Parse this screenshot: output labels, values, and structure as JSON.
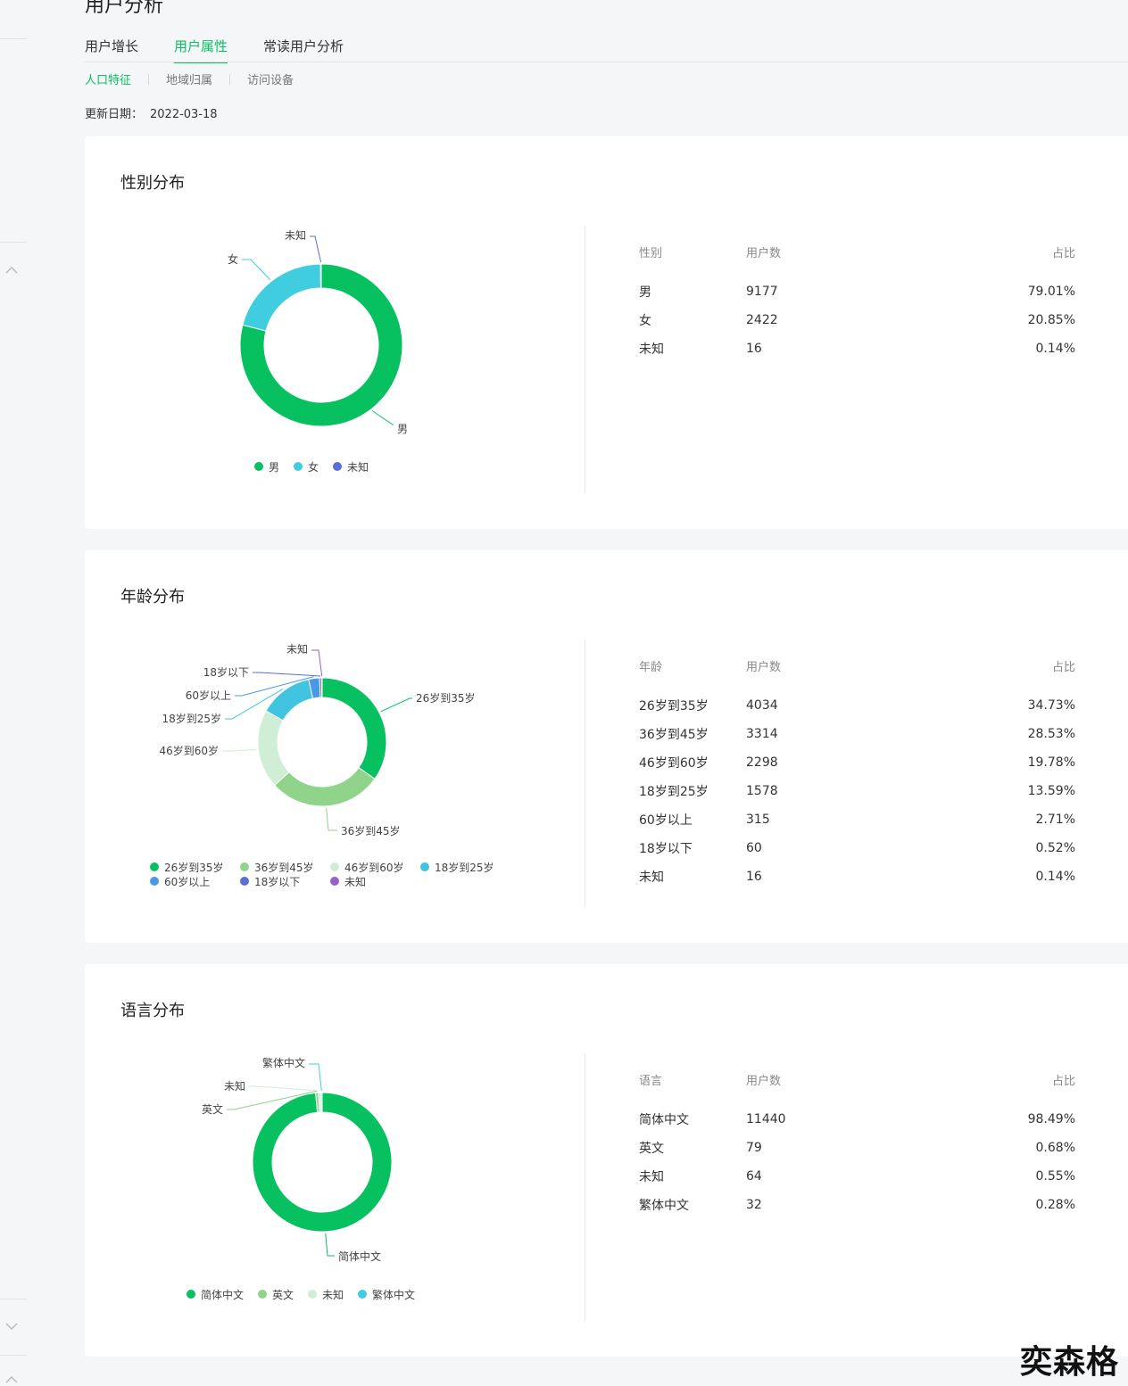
{
  "page_title": "用户分析",
  "tabs": [
    {
      "label": "用户增长",
      "active": false
    },
    {
      "label": "用户属性",
      "active": true
    },
    {
      "label": "常读用户分析",
      "active": false
    }
  ],
  "subtabs": [
    {
      "label": "人口特征",
      "active": true
    },
    {
      "label": "地域归属",
      "active": false
    },
    {
      "label": "访问设备",
      "active": false
    }
  ],
  "update": {
    "label": "更新日期：",
    "value": "2022-03-18"
  },
  "sections": [
    {
      "title": "性别分布",
      "table_headers": [
        "性别",
        "用户数",
        "占比"
      ],
      "rows": [
        {
          "name": "男",
          "count": "9177",
          "percent": "79.01%"
        },
        {
          "name": "女",
          "count": "2422",
          "percent": "20.85%"
        },
        {
          "name": "未知",
          "count": "16",
          "percent": "0.14%"
        }
      ]
    },
    {
      "title": "年龄分布",
      "table_headers": [
        "年龄",
        "用户数",
        "占比"
      ],
      "rows": [
        {
          "name": "26岁到35岁",
          "count": "4034",
          "percent": "34.73%"
        },
        {
          "name": "36岁到45岁",
          "count": "3314",
          "percent": "28.53%"
        },
        {
          "name": "46岁到60岁",
          "count": "2298",
          "percent": "19.78%"
        },
        {
          "name": "18岁到25岁",
          "count": "1578",
          "percent": "13.59%"
        },
        {
          "name": "60岁以上",
          "count": "315",
          "percent": "2.71%"
        },
        {
          "name": "18岁以下",
          "count": "60",
          "percent": "0.52%"
        },
        {
          "name": "未知",
          "count": "16",
          "percent": "0.14%"
        }
      ]
    },
    {
      "title": "语言分布",
      "table_headers": [
        "语言",
        "用户数",
        "占比"
      ],
      "rows": [
        {
          "name": "简体中文",
          "count": "11440",
          "percent": "98.49%"
        },
        {
          "name": "英文",
          "count": "79",
          "percent": "0.68%"
        },
        {
          "name": "未知",
          "count": "64",
          "percent": "0.55%"
        },
        {
          "name": "繁体中文",
          "count": "32",
          "percent": "0.28%"
        }
      ]
    }
  ],
  "chart_data": [
    {
      "type": "pie",
      "categories": [
        "男",
        "女",
        "未知"
      ],
      "values": [
        9177,
        2422,
        16
      ],
      "colors": [
        "#07c160",
        "#40cde0",
        "#5b6ed1"
      ],
      "legend": "bottom"
    },
    {
      "type": "pie",
      "categories": [
        "26岁到35岁",
        "36岁到45岁",
        "46岁到60岁",
        "18岁到25岁",
        "60岁以上",
        "18岁以下",
        "未知"
      ],
      "values": [
        4034,
        3314,
        2298,
        1578,
        315,
        60,
        16
      ],
      "colors": [
        "#07c160",
        "#8fd48a",
        "#cfeed5",
        "#40c4e0",
        "#4a98e8",
        "#5b6ed1",
        "#9a5ecb"
      ],
      "legend": "bottom"
    },
    {
      "type": "pie",
      "categories": [
        "简体中文",
        "英文",
        "未知",
        "繁体中文"
      ],
      "values": [
        11440,
        79,
        64,
        32
      ],
      "colors": [
        "#07c160",
        "#8fd48a",
        "#cfeed5",
        "#40cde0"
      ],
      "legend": "bottom"
    }
  ],
  "watermark": "奕森格"
}
